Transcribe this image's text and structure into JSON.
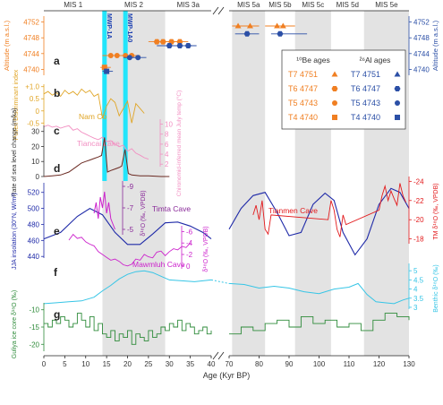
{
  "chart_data": {
    "type": "line",
    "xlabel": "Age (Kyr BP)",
    "x_axis_break": "40-70",
    "xlim_left": [
      0,
      40
    ],
    "xlim_right": [
      70,
      130
    ],
    "x_ticks": [
      "0",
      "5",
      "10",
      "15",
      "20",
      "25",
      "30",
      "35",
      "40",
      "70",
      "80",
      "90",
      "100",
      "110",
      "120",
      "130"
    ],
    "mis_stages": [
      {
        "label": "MIS 1",
        "from": 0,
        "to": 14,
        "shaded": false
      },
      {
        "label": "MIS 2",
        "from": 14,
        "to": 29,
        "shaded": true
      },
      {
        "label": "MIS 3a",
        "from": 29,
        "to": 40,
        "shaded": false
      },
      {
        "label": "MIS 5a",
        "from": 71,
        "to": 82,
        "shaded": true
      },
      {
        "label": "MIS 5b",
        "from": 82,
        "to": 92,
        "shaded": false
      },
      {
        "label": "MIS 5c",
        "from": 92,
        "to": 104,
        "shaded": true
      },
      {
        "label": "MIS 5d",
        "from": 104,
        "to": 115,
        "shaded": false
      },
      {
        "label": "MIS 5e",
        "from": 115,
        "to": 130,
        "shaded": true
      }
    ],
    "events": [
      {
        "label": "MWP-1A",
        "x": 14.5
      },
      {
        "label": "MWP-1A0",
        "x": 19.5
      }
    ],
    "panel_letters": [
      "a",
      "b",
      "c",
      "d",
      "e",
      "f",
      "g"
    ],
    "panel_a": {
      "ylabel_left": "Altitude (m a.s.l.)",
      "ylabel_right": "Altitude (m a.s.l.)",
      "y_ticks": [
        "4740",
        "4744",
        "4748",
        "4752"
      ],
      "ylim": [
        4738.5,
        4753.5
      ],
      "legend": {
        "be_title": "¹⁰Be ages",
        "al_title": "²⁶Al ages",
        "be_rows": [
          {
            "label": "T7",
            "alt": "4751",
            "marker": "triangle"
          },
          {
            "label": "T6",
            "alt": "4747",
            "marker": "hexagon"
          },
          {
            "label": "T5",
            "alt": "4743",
            "marker": "circle"
          },
          {
            "label": "T4",
            "alt": "4740",
            "marker": "square"
          }
        ],
        "al_rows": [
          {
            "label": "T7",
            "alt": "4751",
            "marker": "triangle"
          },
          {
            "label": "T6",
            "alt": "4747",
            "marker": "hexagon"
          },
          {
            "label": "T5",
            "alt": "4743",
            "marker": "circle"
          },
          {
            "label": "T4",
            "alt": "4740",
            "marker": "square"
          }
        ]
      },
      "be_points": [
        {
          "x": 73,
          "alt": 4751,
          "xmin": 71,
          "xmax": 77
        },
        {
          "x": 77,
          "alt": 4751,
          "xmin": 74,
          "xmax": 80
        },
        {
          "x": 86,
          "alt": 4751,
          "xmin": 82,
          "xmax": 89
        },
        {
          "x": 88,
          "alt": 4751,
          "xmin": 86,
          "xmax": 92
        },
        {
          "x": 27,
          "alt": 4747,
          "xmin": 25,
          "xmax": 29
        },
        {
          "x": 28.5,
          "alt": 4747,
          "xmin": 27,
          "xmax": 30.5
        },
        {
          "x": 30.5,
          "alt": 4747,
          "xmin": 29,
          "xmax": 32
        },
        {
          "x": 32.5,
          "alt": 4747,
          "xmin": 31,
          "xmax": 34.5
        },
        {
          "x": 16,
          "alt": 4743.5,
          "xmin": 14,
          "xmax": 18
        },
        {
          "x": 17.5,
          "alt": 4743.5,
          "xmin": 16,
          "xmax": 19.5
        },
        {
          "x": 19.5,
          "alt": 4743.5,
          "xmin": 18,
          "xmax": 21.5
        },
        {
          "x": 21,
          "alt": 4743.5,
          "xmin": 19.5,
          "xmax": 23
        },
        {
          "x": 14.5,
          "alt": 4740.5,
          "xmin": 13.5,
          "xmax": 16
        }
      ],
      "al_points": [
        {
          "x": 76,
          "alt": 4749,
          "xmin": 72,
          "xmax": 80
        },
        {
          "x": 87,
          "alt": 4749,
          "xmin": 84,
          "xmax": 96
        },
        {
          "x": 30,
          "alt": 4746,
          "xmin": 27,
          "xmax": 34
        },
        {
          "x": 32.5,
          "alt": 4746,
          "xmin": 31,
          "xmax": 35
        },
        {
          "x": 34.5,
          "alt": 4746,
          "xmin": 33,
          "xmax": 36.5
        },
        {
          "x": 20.5,
          "alt": 4743,
          "xmin": 19,
          "xmax": 23
        },
        {
          "x": 22.5,
          "alt": 4743,
          "xmin": 21,
          "xmax": 24.5
        },
        {
          "x": 15,
          "alt": 4739.5,
          "xmin": 14,
          "xmax": 16.5
        }
      ]
    },
    "panel_b": {
      "ylabel": "Pollen Discriminant index",
      "label": "Nam Co",
      "y_ticks": [
        "+1.0",
        "0.5",
        "0",
        "-0.5"
      ],
      "ylim": [
        -0.6,
        1.1
      ],
      "x": [
        0,
        1,
        2,
        3,
        4,
        5,
        6,
        7,
        8,
        9,
        10,
        11,
        12,
        13,
        14,
        15,
        16,
        17,
        18,
        19,
        20,
        21,
        22,
        23,
        24
      ],
      "values": [
        0.7,
        0.8,
        0.65,
        0.75,
        0.6,
        0.85,
        0.7,
        0.8,
        0.65,
        0.9,
        0.75,
        0.85,
        0.6,
        0.7,
        -0.3,
        0.2,
        0.5,
        0.35,
        -0.2,
        0.1,
        0.4,
        -0.5,
        0.3,
        0.1,
        -0.1
      ]
    },
    "panel_c": {
      "ylabel": "Chironomid-inferred mean July temp (°C)",
      "label": "Tiancai Lake",
      "y_ticks": [
        "10",
        "8",
        "6",
        "4",
        "2"
      ],
      "ylim": [
        1.5,
        11
      ],
      "x": [
        0,
        1,
        2,
        3,
        4,
        5,
        6,
        7,
        8,
        9,
        10,
        11,
        12,
        13,
        14,
        15,
        16,
        17,
        18,
        19,
        20,
        21,
        22,
        23,
        24,
        25
      ],
      "values": [
        9.5,
        9.8,
        9.4,
        9.6,
        9.2,
        9.5,
        9.7,
        8.8,
        9.1,
        8.4,
        8.0,
        7.6,
        7.2,
        6.9,
        7.4,
        6.5,
        6.7,
        6.0,
        5.5,
        5.8,
        4.6,
        5.1,
        4.2,
        3.8,
        3.3,
        3.0
      ]
    },
    "panel_d": {
      "ylabel": "Rate of sea level change (m/ka)",
      "y_ticks": [
        "30",
        "20",
        "10",
        "0"
      ],
      "ylim": [
        0,
        34
      ],
      "x": [
        0,
        2,
        4,
        6,
        8,
        9,
        10,
        11,
        12,
        13,
        13.8,
        14.5,
        15.2,
        16,
        17,
        18,
        18.6,
        19.4,
        20.2,
        21,
        23,
        25,
        28,
        30
      ],
      "values": [
        0,
        0.5,
        1,
        3,
        7,
        9,
        10,
        11,
        12,
        13,
        14,
        26,
        3,
        4,
        5,
        6,
        7,
        18,
        2,
        1,
        0.5,
        0.5,
        0,
        0
      ]
    },
    "panel_e": {
      "ylabel_left": "JJA insolation (30°N, W/m²)",
      "ylabel_right": "TM δ¹⁸O (‰, VPDB)",
      "insolation_ticks": [
        "520",
        "500",
        "480",
        "460",
        "440"
      ],
      "insolation_lim": [
        438,
        532
      ],
      "tm_ticks": [
        "-24",
        "-22",
        "-20",
        "-18"
      ],
      "labels": {
        "timta": "Timta Cave",
        "mawmluh": "Mawmluh Cave",
        "tianmen": "Tianmen Cave"
      },
      "timta_axis": {
        "label": "δ¹⁸O (‰, VPDB)",
        "ticks": [
          "-9",
          "-7",
          "-5"
        ]
      },
      "mawmluh_axis": {
        "label": "δ¹⁸O (‰, VPDB)",
        "ticks": [
          "-6",
          "-4",
          "-2",
          "0"
        ]
      },
      "insolation": {
        "x": [
          0,
          4,
          8,
          11,
          14,
          17,
          20,
          23,
          26,
          29,
          32,
          35,
          38,
          40,
          70,
          74,
          78,
          82,
          86,
          90,
          94,
          98,
          102,
          105,
          108,
          112,
          116,
          120,
          124,
          127,
          130
        ],
        "values": [
          462,
          470,
          490,
          500,
          492,
          470,
          455,
          455,
          468,
          482,
          483,
          478,
          470,
          462,
          474,
          500,
          516,
          520,
          495,
          466,
          470,
          505,
          519,
          510,
          470,
          442,
          462,
          505,
          525,
          520,
          500
        ]
      },
      "timta": {
        "x": [
          12,
          12.5,
          13,
          13.5,
          14,
          14.5,
          15,
          15.5,
          16,
          16.5,
          17
        ],
        "values": [
          -6.5,
          -7.5,
          -6.0,
          -8.0,
          -7.0,
          -8.5,
          -6.5,
          -7.5,
          -6.0,
          -5.5,
          -5.0
        ]
      },
      "mawmluh": {
        "x": [
          6,
          7,
          8,
          9,
          10,
          11,
          12,
          13,
          14,
          15,
          16,
          17,
          18,
          19,
          20,
          21,
          22,
          23,
          24,
          25,
          26,
          27,
          28,
          29,
          30,
          31,
          32,
          33,
          34,
          35
        ],
        "values": [
          -4.5,
          -5.5,
          -4.8,
          -5.0,
          -4.2,
          -3.8,
          -3.5,
          -2.5,
          -2.0,
          -1.5,
          -1.0,
          -1.2,
          -0.8,
          -0.2,
          0.0,
          -0.3,
          -1.2,
          -1.0,
          -2.0,
          -1.6,
          -1.4,
          -2.4,
          -2.6,
          -1.8,
          -2.5,
          -3.0,
          -2.8,
          -3.4,
          -3.2,
          -4.0
        ]
      },
      "tianmen": {
        "x": [
          78,
          79,
          80,
          81,
          82,
          83,
          84,
          103,
          104,
          105,
          106,
          107,
          108,
          109,
          120,
          121,
          122,
          123,
          124,
          125,
          126,
          127,
          128,
          129
        ],
        "values": [
          -20.5,
          -21.5,
          -20.0,
          -22.0,
          -19.0,
          -18.5,
          -20.5,
          -20.0,
          -22.0,
          -21.0,
          -19.0,
          -18.2,
          -20.5,
          -19.5,
          -21.0,
          -22.5,
          -23.5,
          -22.0,
          -23.0,
          -22.2,
          -21.5,
          -23.8,
          -22.5,
          -21.8
        ]
      }
    },
    "panel_f": {
      "ylabel": "Benthic δ¹⁸O (‰)",
      "y_ticks": [
        "3",
        "3.5",
        "4",
        "4.5",
        "5"
      ],
      "ylim": [
        2.9,
        5.4
      ],
      "x": [
        0,
        3,
        6,
        9,
        12,
        14,
        16,
        18,
        20,
        22,
        24,
        26,
        28,
        30,
        33,
        36,
        40,
        70,
        75,
        80,
        85,
        90,
        95,
        100,
        105,
        110,
        113,
        116,
        119,
        122,
        125,
        128,
        130
      ],
      "values": [
        3.2,
        3.25,
        3.3,
        3.35,
        3.55,
        3.9,
        4.2,
        4.55,
        4.8,
        4.95,
        5.0,
        4.9,
        4.7,
        4.5,
        4.45,
        4.4,
        4.5,
        4.3,
        4.25,
        4.05,
        4.15,
        4.05,
        3.85,
        3.75,
        4.0,
        4.1,
        4.3,
        3.7,
        3.3,
        3.25,
        3.2,
        3.4,
        3.5
      ]
    },
    "panel_g": {
      "ylabel": "Guliya ice core δ¹⁸O (‰)",
      "y_ticks": [
        "-10",
        "-15",
        "-20"
      ],
      "ylim": [
        -22,
        -8
      ],
      "x": [
        0,
        1,
        2,
        3,
        4,
        5,
        6,
        7,
        8,
        9,
        10,
        11,
        12,
        13,
        14,
        15,
        16,
        17,
        18,
        19,
        20,
        21,
        22,
        23,
        24,
        25,
        26,
        27,
        28,
        29,
        30,
        31,
        32,
        33,
        34,
        35,
        36,
        37,
        38,
        39,
        40,
        70,
        74,
        78,
        82,
        86,
        90,
        94,
        98,
        102,
        106,
        110,
        114,
        118,
        122,
        126,
        130
      ],
      "values": [
        -14,
        -15,
        -13,
        -14,
        -12,
        -13,
        -15,
        -14,
        -11,
        -13,
        -15,
        -12,
        -16,
        -14,
        -17,
        -18,
        -16,
        -19,
        -17,
        -18,
        -16,
        -20,
        -17,
        -18,
        -19,
        -16,
        -18,
        -17,
        -15,
        -16,
        -14,
        -15,
        -13,
        -16,
        -14,
        -15,
        -17,
        -16,
        -15,
        -17,
        -16,
        -17,
        -15,
        -16,
        -14,
        -13,
        -15,
        -12,
        -14,
        -13,
        -15,
        -14,
        -16,
        -13,
        -11,
        -12,
        -13
      ]
    }
  }
}
